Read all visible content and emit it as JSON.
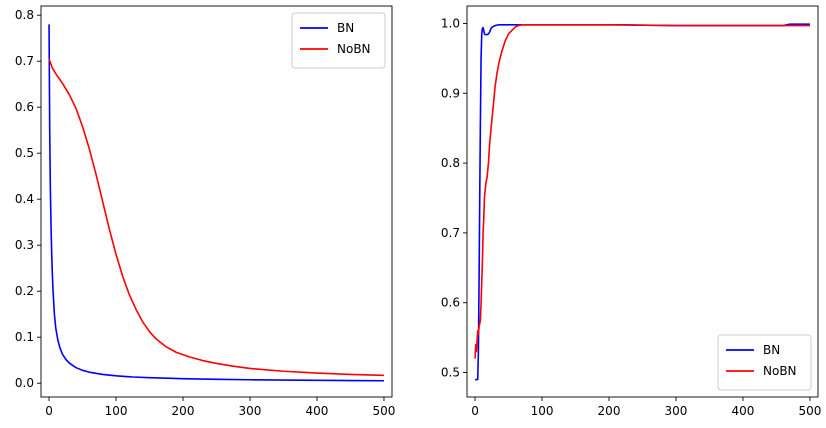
{
  "chart_data": [
    {
      "type": "line",
      "title": "",
      "xlabel": "",
      "ylabel": "",
      "xlim": [
        -12,
        512
      ],
      "ylim": [
        -0.03,
        0.82
      ],
      "xticks": [
        0,
        100,
        200,
        300,
        400,
        500
      ],
      "xtick_labels": [
        "0",
        "100",
        "200",
        "300",
        "400",
        "500"
      ],
      "yticks": [
        0.0,
        0.1,
        0.2,
        0.3,
        0.4,
        0.5,
        0.6,
        0.7,
        0.8
      ],
      "ytick_labels": [
        "0.0",
        "0.1",
        "0.2",
        "0.3",
        "0.4",
        "0.5",
        "0.6",
        "0.7",
        "0.8"
      ],
      "grid": false,
      "legend": {
        "position": "top-right",
        "entries": [
          "BN",
          "NoBN"
        ]
      },
      "series": [
        {
          "name": "BN",
          "color": "#0000ff",
          "x": [
            0,
            1,
            2,
            3,
            4,
            5,
            6,
            8,
            10,
            13,
            16,
            20,
            25,
            30,
            40,
            50,
            60,
            80,
            100,
            125,
            150,
            200,
            250,
            300,
            350,
            400,
            450,
            500
          ],
          "y": [
            0.78,
            0.55,
            0.42,
            0.34,
            0.28,
            0.235,
            0.2,
            0.15,
            0.12,
            0.095,
            0.078,
            0.063,
            0.052,
            0.044,
            0.034,
            0.028,
            0.024,
            0.019,
            0.016,
            0.0135,
            0.012,
            0.0098,
            0.0085,
            0.0075,
            0.0068,
            0.0062,
            0.0057,
            0.0053
          ]
        },
        {
          "name": "NoBN",
          "color": "#ff0000",
          "x": [
            0,
            5,
            10,
            20,
            30,
            40,
            50,
            60,
            70,
            80,
            90,
            100,
            110,
            120,
            130,
            140,
            150,
            160,
            175,
            190,
            210,
            230,
            250,
            275,
            300,
            350,
            400,
            450,
            500
          ],
          "y": [
            0.705,
            0.685,
            0.673,
            0.652,
            0.628,
            0.598,
            0.558,
            0.51,
            0.455,
            0.395,
            0.335,
            0.28,
            0.232,
            0.192,
            0.16,
            0.133,
            0.112,
            0.096,
            0.079,
            0.067,
            0.057,
            0.049,
            0.043,
            0.037,
            0.032,
            0.026,
            0.022,
            0.019,
            0.017
          ]
        }
      ]
    },
    {
      "type": "line",
      "title": "",
      "xlabel": "",
      "ylabel": "",
      "xlim": [
        -12,
        512
      ],
      "ylim": [
        0.465,
        1.025
      ],
      "xticks": [
        0,
        100,
        200,
        300,
        400,
        500
      ],
      "xtick_labels": [
        "0",
        "100",
        "200",
        "300",
        "400",
        "500"
      ],
      "yticks": [
        0.5,
        0.6,
        0.7,
        0.8,
        0.9,
        1.0
      ],
      "ytick_labels": [
        "0.5",
        "0.6",
        "0.7",
        "0.8",
        "0.9",
        "1.0"
      ],
      "grid": false,
      "legend": {
        "position": "bottom-right",
        "entries": [
          "BN",
          "NoBN"
        ]
      },
      "series": [
        {
          "name": "BN",
          "color": "#0000ff",
          "x": [
            0,
            1,
            2,
            3,
            4,
            5,
            6,
            7,
            8,
            9,
            10,
            11,
            12,
            13,
            14,
            15,
            16,
            18,
            20,
            22,
            24,
            26,
            28,
            30,
            35,
            40,
            60,
            100,
            150,
            200,
            220,
            300,
            400,
            460,
            470,
            500
          ],
          "y": [
            0.49,
            0.49,
            0.49,
            0.49,
            0.49,
            0.53,
            0.63,
            0.75,
            0.86,
            0.95,
            0.985,
            0.993,
            0.994,
            0.99,
            0.985,
            0.984,
            0.984,
            0.984,
            0.985,
            0.988,
            0.993,
            0.995,
            0.996,
            0.997,
            0.998,
            0.998,
            0.998,
            0.998,
            0.998,
            0.998,
            0.998,
            0.997,
            0.997,
            0.997,
            0.999,
            0.999
          ]
        },
        {
          "name": "NoBN",
          "color": "#ff0000",
          "x": [
            0,
            1,
            2,
            3,
            4,
            5,
            6,
            7,
            8,
            9,
            10,
            11,
            12,
            13,
            14,
            15,
            16,
            18,
            20,
            22,
            25,
            28,
            30,
            33,
            36,
            40,
            45,
            50,
            55,
            60,
            65,
            70,
            80,
            90,
            100,
            120,
            150,
            200,
            300,
            400,
            500
          ],
          "y": [
            0.52,
            0.54,
            0.53,
            0.545,
            0.56,
            0.555,
            0.565,
            0.57,
            0.575,
            0.6,
            0.63,
            0.66,
            0.7,
            0.72,
            0.75,
            0.76,
            0.77,
            0.78,
            0.8,
            0.83,
            0.86,
            0.89,
            0.91,
            0.93,
            0.945,
            0.96,
            0.975,
            0.985,
            0.99,
            0.995,
            0.997,
            0.998,
            0.998,
            0.998,
            0.998,
            0.998,
            0.998,
            0.998,
            0.997,
            0.997,
            0.997
          ]
        }
      ]
    }
  ]
}
